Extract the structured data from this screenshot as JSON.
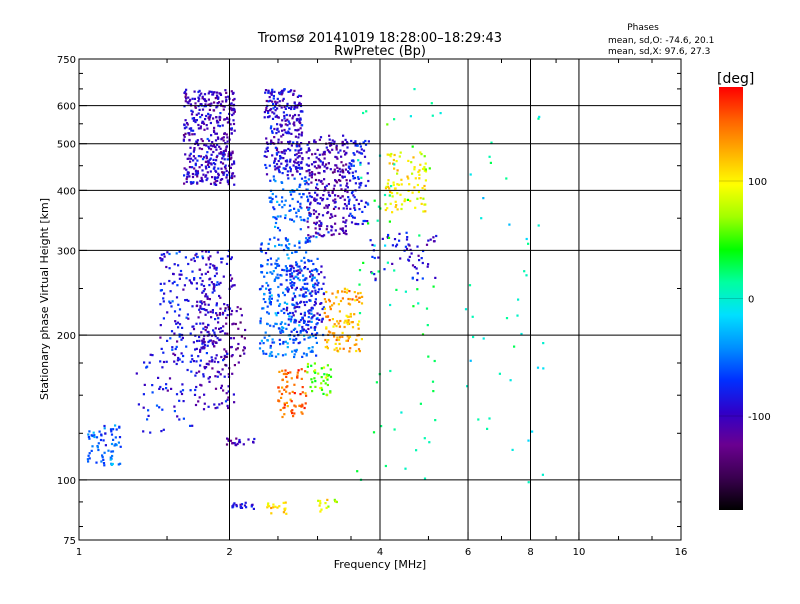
{
  "chart_data": {
    "type": "scatter",
    "title_line1": "Tromsø 20141019 18:28:00–18:29:43",
    "title_line2": "RwPretec (Bp)",
    "stats": {
      "title": "Phases",
      "line_o": "mean, sd,O: -74.6, 20.1",
      "line_x": "mean, sd,X:  97.6, 27.3"
    },
    "xlabel": "Frequency [MHz]",
    "ylabel": "Stationary phase Virtual Height [km]",
    "x_scale": "log",
    "y_scale": "log",
    "xlim": [
      1,
      16
    ],
    "ylim": [
      75,
      750
    ],
    "x_ticks": [
      {
        "v": 1,
        "label": "1"
      },
      {
        "v": 2,
        "label": "2"
      },
      {
        "v": 4,
        "label": "4"
      },
      {
        "v": 6,
        "label": "6"
      },
      {
        "v": 8,
        "label": "8"
      },
      {
        "v": 10,
        "label": "10"
      },
      {
        "v": 16,
        "label": "16"
      }
    ],
    "x_grid": [
      2,
      4,
      6,
      8,
      10
    ],
    "y_ticks": [
      {
        "v": 75,
        "label": "75"
      },
      {
        "v": 100,
        "label": "100"
      },
      {
        "v": 200,
        "label": "200"
      },
      {
        "v": 300,
        "label": "300"
      },
      {
        "v": 400,
        "label": "400"
      },
      {
        "v": 500,
        "label": "500"
      },
      {
        "v": 600,
        "label": "600"
      },
      {
        "v": 750,
        "label": "750"
      }
    ],
    "y_grid": [
      100,
      200,
      300,
      400,
      500,
      600
    ],
    "grid": true,
    "colorbar": {
      "label": "[deg]",
      "range": [
        -180,
        180
      ],
      "ticks": [
        {
          "v": 100,
          "label": "100"
        },
        {
          "v": 0,
          "label": "0"
        },
        {
          "v": -100,
          "label": "-100"
        }
      ],
      "colors": [
        "#000000",
        "#3a0050",
        "#6a0090",
        "#3000c8",
        "#0030ff",
        "#0090ff",
        "#00e0ff",
        "#00ffa0",
        "#00ff00",
        "#a0ff00",
        "#ffff00",
        "#ffb000",
        "#ff6000",
        "#ff0000"
      ]
    },
    "clusters": [
      {
        "x": [
          1.62,
          2.05
        ],
        "y": [
          410,
          650
        ],
        "phase": -100,
        "n": 420
      },
      {
        "x": [
          2.35,
          2.8
        ],
        "y": [
          430,
          650
        ],
        "phase": -95,
        "n": 280
      },
      {
        "x": [
          2.85,
          3.45
        ],
        "y": [
          320,
          520
        ],
        "phase": -105,
        "n": 260
      },
      {
        "x": [
          2.4,
          2.9
        ],
        "y": [
          330,
          430
        ],
        "phase": -55,
        "n": 90
      },
      {
        "x": [
          3.45,
          3.8
        ],
        "y": [
          340,
          510
        ],
        "phase": -80,
        "n": 90
      },
      {
        "x": [
          1.45,
          1.9
        ],
        "y": [
          175,
          300
        ],
        "phase": -85,
        "n": 170
      },
      {
        "x": [
          1.7,
          2.05
        ],
        "y": [
          140,
          300
        ],
        "phase": -100,
        "n": 200
      },
      {
        "x": [
          1.9,
          2.15
        ],
        "y": [
          170,
          230
        ],
        "phase": -125,
        "n": 40
      },
      {
        "x": [
          2.3,
          3.0
        ],
        "y": [
          180,
          320
        ],
        "phase": -55,
        "n": 320
      },
      {
        "x": [
          2.6,
          3.1
        ],
        "y": [
          200,
          280
        ],
        "phase": -85,
        "n": 130
      },
      {
        "x": [
          3.1,
          3.7
        ],
        "y": [
          185,
          250
        ],
        "phase": 125,
        "n": 120
      },
      {
        "x": [
          2.5,
          2.85
        ],
        "y": [
          135,
          170
        ],
        "phase": 150,
        "n": 70
      },
      {
        "x": [
          2.85,
          3.2
        ],
        "y": [
          150,
          175
        ],
        "phase": 60,
        "n": 40
      },
      {
        "x": [
          1.3,
          1.75
        ],
        "y": [
          125,
          185
        ],
        "phase": -80,
        "n": 60
      },
      {
        "x": [
          1.04,
          1.22
        ],
        "y": [
          107,
          130
        ],
        "phase": -55,
        "n": 70
      },
      {
        "x": [
          1.95,
          2.25
        ],
        "y": [
          118,
          122
        ],
        "phase": -105,
        "n": 20
      },
      {
        "x": [
          2.0,
          2.25
        ],
        "y": [
          87,
          90
        ],
        "phase": -90,
        "n": 20
      },
      {
        "x": [
          2.35,
          2.6
        ],
        "y": [
          85,
          90
        ],
        "phase": 110,
        "n": 18
      },
      {
        "x": [
          3.0,
          3.3
        ],
        "y": [
          86,
          91
        ],
        "phase": 95,
        "n": 14
      },
      {
        "x": [
          4.1,
          4.95
        ],
        "y": [
          360,
          480
        ],
        "phase": 100,
        "n": 90
      },
      {
        "x": [
          3.8,
          5.2
        ],
        "y": [
          260,
          330
        ],
        "phase": -90,
        "n": 60
      },
      {
        "x": [
          3.6,
          5.3
        ],
        "y": [
          100,
          650
        ],
        "phase": 20,
        "n": 70
      },
      {
        "x": [
          5.9,
          8.5
        ],
        "y": [
          95,
          600
        ],
        "phase": 0,
        "n": 40
      }
    ]
  }
}
